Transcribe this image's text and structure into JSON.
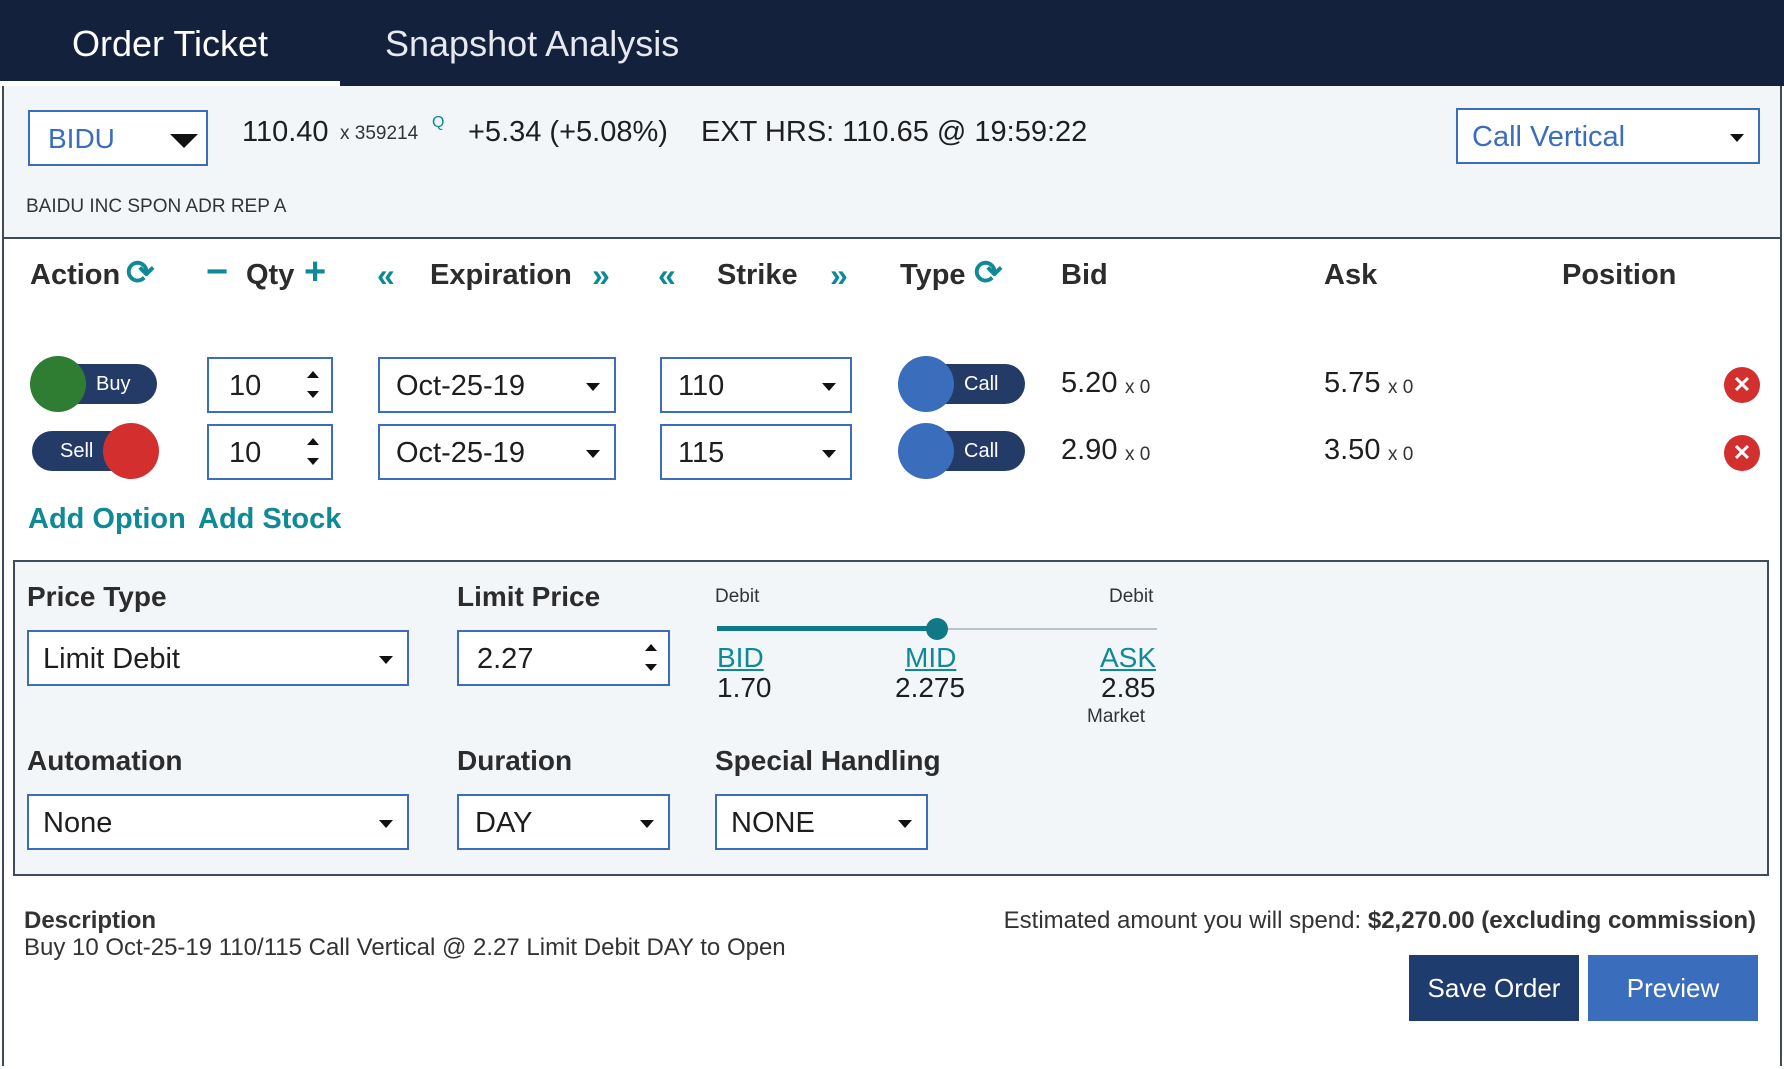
{
  "tabs": [
    {
      "label": "Order Ticket",
      "active": true
    },
    {
      "label": "Snapshot Analysis",
      "active": false
    }
  ],
  "symbol": {
    "ticker": "BIDU",
    "company": "BAIDU INC SPON ADR REP A",
    "last": "110.40",
    "size": "x 359214",
    "quote_flag": "Q",
    "change": "+5.34 (+5.08%)",
    "ext_hours": "EXT HRS: 110.65 @ 19:59:22"
  },
  "strategy": "Call Vertical",
  "columns": {
    "action": "Action",
    "qty": "Qty",
    "expiration": "Expiration",
    "strike": "Strike",
    "type": "Type",
    "bid": "Bid",
    "ask": "Ask",
    "position": "Position"
  },
  "legs": [
    {
      "action": "Buy",
      "qty": "10",
      "expiration": "Oct-25-19",
      "strike": "110",
      "type": "Call",
      "bid": "5.20",
      "bid_size": "x 0",
      "ask": "5.75",
      "ask_size": "x 0",
      "position": ""
    },
    {
      "action": "Sell",
      "qty": "10",
      "expiration": "Oct-25-19",
      "strike": "115",
      "type": "Call",
      "bid": "2.90",
      "bid_size": "x 0",
      "ask": "3.50",
      "ask_size": "x 0",
      "position": ""
    }
  ],
  "links": {
    "add_option": "Add Option",
    "add_stock": "Add Stock"
  },
  "order": {
    "price_type_label": "Price Type",
    "price_type": "Limit Debit",
    "limit_price_label": "Limit Price",
    "limit_price": "2.27",
    "slider": {
      "left_label": "Debit",
      "right_label": "Debit",
      "bid_label": "BID",
      "bid": "1.70",
      "mid_label": "MID",
      "mid": "2.275",
      "ask_label": "ASK",
      "ask": "2.85",
      "market_label": "Market",
      "position_fraction": 0.5
    },
    "automation_label": "Automation",
    "automation": "None",
    "duration_label": "Duration",
    "duration": "DAY",
    "special_label": "Special Handling",
    "special": "NONE"
  },
  "description": {
    "label": "Description",
    "text": "Buy 10 Oct-25-19 110/115 Call Vertical @ 2.27 Limit Debit DAY to Open"
  },
  "estimate": {
    "label": "Estimated amount you will spend:",
    "amount": "$2,270.00 (excluding commission)"
  },
  "buttons": {
    "save": "Save Order",
    "preview": "Preview"
  },
  "colors": {
    "header_bg": "#14213d",
    "toggle_bg": "#243b67",
    "buy_green": "#2e7d32",
    "sell_red": "#d32f2f",
    "call_blue": "#3b6dbd",
    "teal": "#0d8a96",
    "save_btn": "#1f3c6e",
    "preview_btn": "#3b6dbd"
  }
}
